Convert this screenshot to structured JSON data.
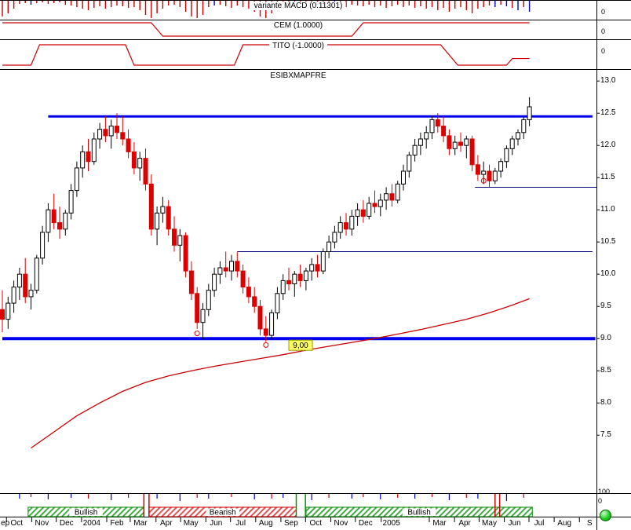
{
  "panels": {
    "macd": {
      "title": "variante MACD (0.11301)",
      "zero_label": "0"
    },
    "cem": {
      "title": "CEM (1.0000)",
      "zero_label": "0"
    },
    "tito": {
      "title": "TITO (-1.0000)",
      "zero_label": "0"
    },
    "main": {
      "title": "ESIBXMAPFRE"
    },
    "signal": {
      "scale_top_label": "100",
      "scale_bottom_label": "0"
    }
  },
  "status_indicator": {
    "color": "#22cc22"
  },
  "chart_data": {
    "type": "candlestick",
    "symbol": "ESIBXMAPFRE",
    "indicators": {
      "macd_value": 0.11301,
      "cem_value": 1.0,
      "tito_value": -1.0
    },
    "style": {
      "up_color": "#ffffff",
      "down_color": "#dd0000",
      "ma_color": "#cc0000",
      "support_color": "#0000ee",
      "minor_line_color": "#000080"
    },
    "y_axis": {
      "min": 6.6,
      "max": 13.1,
      "ticks": [
        "13.0",
        "12.5",
        "12.0",
        "11.5",
        "11.0",
        "10.5",
        "10.0",
        "9.5",
        "9.0",
        "8.5",
        "8.0",
        "7.5"
      ]
    },
    "x_axis": {
      "labels": [
        {
          "label": "ep",
          "week": 0.5
        },
        {
          "label": "Oct",
          "week": 2.5
        },
        {
          "label": "Nov",
          "week": 6.9
        },
        {
          "label": "Dec",
          "week": 11.2
        },
        {
          "label": "2004",
          "week": 15.6
        },
        {
          "label": "Feb",
          "week": 20
        },
        {
          "label": "Mar",
          "week": 24.1
        },
        {
          "label": "Apr",
          "week": 28.6
        },
        {
          "label": "May",
          "week": 32.9
        },
        {
          "label": "Jun",
          "week": 37.3
        },
        {
          "label": "Jul",
          "week": 41.6
        },
        {
          "label": "Aug",
          "week": 46
        },
        {
          "label": "Sep",
          "week": 50.4
        },
        {
          "label": "Oct",
          "week": 54.7
        },
        {
          "label": "Nov",
          "week": 59.1
        },
        {
          "label": "Dec",
          "week": 63.4
        },
        {
          "label": "2005",
          "week": 67.9
        },
        {
          "label": "Mar",
          "week": 76.3
        },
        {
          "label": "Apr",
          "week": 80.7
        },
        {
          "label": "May",
          "week": 85
        },
        {
          "label": "Jun",
          "week": 89.4
        },
        {
          "label": "Jul",
          "week": 93.7
        },
        {
          "label": "Aug",
          "week": 98.1
        },
        {
          "label": "S",
          "week": 102.5
        }
      ]
    },
    "candles": [
      [
        9.45,
        9.75,
        9.1,
        9.3
      ],
      [
        9.3,
        9.65,
        9.15,
        9.55
      ],
      [
        9.55,
        9.9,
        9.4,
        9.8
      ],
      [
        9.8,
        10.1,
        9.6,
        10.0
      ],
      [
        10.0,
        10.25,
        9.55,
        9.65
      ],
      [
        9.65,
        9.85,
        9.45,
        9.75
      ],
      [
        9.75,
        10.3,
        9.7,
        10.25
      ],
      [
        10.25,
        10.75,
        10.15,
        10.65
      ],
      [
        10.65,
        11.1,
        10.5,
        11.0
      ],
      [
        11.0,
        11.25,
        10.7,
        10.8
      ],
      [
        10.8,
        11.05,
        10.55,
        10.7
      ],
      [
        10.7,
        11.0,
        10.6,
        10.95
      ],
      [
        10.95,
        11.4,
        10.85,
        11.3
      ],
      [
        11.3,
        11.75,
        11.2,
        11.65
      ],
      [
        11.65,
        12.0,
        11.5,
        11.9
      ],
      [
        11.9,
        12.1,
        11.6,
        11.75
      ],
      [
        11.75,
        12.2,
        11.7,
        12.1
      ],
      [
        12.1,
        12.35,
        11.95,
        12.25
      ],
      [
        12.25,
        12.45,
        12.05,
        12.15
      ],
      [
        12.15,
        12.4,
        11.95,
        12.3
      ],
      [
        12.3,
        12.5,
        12.1,
        12.2
      ],
      [
        12.2,
        12.45,
        12.0,
        12.1
      ],
      [
        12.1,
        12.25,
        11.8,
        11.9
      ],
      [
        11.9,
        12.05,
        11.55,
        11.65
      ],
      [
        11.65,
        11.9,
        11.45,
        11.8
      ],
      [
        11.8,
        11.95,
        11.3,
        11.4
      ],
      [
        11.4,
        11.55,
        10.6,
        10.7
      ],
      [
        10.7,
        11.05,
        10.45,
        10.95
      ],
      [
        10.95,
        11.2,
        10.8,
        11.05
      ],
      [
        11.05,
        11.15,
        10.6,
        10.7
      ],
      [
        10.7,
        10.9,
        10.35,
        10.45
      ],
      [
        10.45,
        10.7,
        10.2,
        10.6
      ],
      [
        10.6,
        10.65,
        9.95,
        10.05
      ],
      [
        10.05,
        10.2,
        9.6,
        9.7
      ],
      [
        9.7,
        9.8,
        9.15,
        9.25
      ],
      [
        9.25,
        9.55,
        9.0,
        9.45
      ],
      [
        9.45,
        9.85,
        9.35,
        9.75
      ],
      [
        9.75,
        10.1,
        9.65,
        10.0
      ],
      [
        10.0,
        10.2,
        9.85,
        10.1
      ],
      [
        10.1,
        10.35,
        9.95,
        10.05
      ],
      [
        10.05,
        10.3,
        9.9,
        10.2
      ],
      [
        10.2,
        10.35,
        9.95,
        10.05
      ],
      [
        10.05,
        10.15,
        9.7,
        9.8
      ],
      [
        9.8,
        9.95,
        9.55,
        9.65
      ],
      [
        9.65,
        9.8,
        9.4,
        9.5
      ],
      [
        9.5,
        9.6,
        9.05,
        9.15
      ],
      [
        9.15,
        9.35,
        8.95,
        9.05
      ],
      [
        9.05,
        9.45,
        9.0,
        9.4
      ],
      [
        9.4,
        9.8,
        9.3,
        9.7
      ],
      [
        9.7,
        10.0,
        9.6,
        9.9
      ],
      [
        9.9,
        10.1,
        9.75,
        9.85
      ],
      [
        9.85,
        10.05,
        9.65,
        10.0
      ],
      [
        10.0,
        10.15,
        9.8,
        9.9
      ],
      [
        9.9,
        10.1,
        9.75,
        10.05
      ],
      [
        10.05,
        10.25,
        9.9,
        10.15
      ],
      [
        10.15,
        10.3,
        9.95,
        10.05
      ],
      [
        10.05,
        10.4,
        10.0,
        10.35
      ],
      [
        10.35,
        10.6,
        10.25,
        10.5
      ],
      [
        10.5,
        10.75,
        10.4,
        10.65
      ],
      [
        10.65,
        10.9,
        10.55,
        10.8
      ],
      [
        10.8,
        10.95,
        10.6,
        10.7
      ],
      [
        10.7,
        11.0,
        10.6,
        10.9
      ],
      [
        10.9,
        11.1,
        10.75,
        11.0
      ],
      [
        11.0,
        11.15,
        10.8,
        10.9
      ],
      [
        10.9,
        11.2,
        10.85,
        11.1
      ],
      [
        11.1,
        11.3,
        10.95,
        11.05
      ],
      [
        11.05,
        11.25,
        10.9,
        11.15
      ],
      [
        11.15,
        11.35,
        11.0,
        11.25
      ],
      [
        11.25,
        11.4,
        11.05,
        11.15
      ],
      [
        11.15,
        11.45,
        11.1,
        11.4
      ],
      [
        11.4,
        11.7,
        11.3,
        11.6
      ],
      [
        11.6,
        11.9,
        11.5,
        11.85
      ],
      [
        11.85,
        12.1,
        11.75,
        12.0
      ],
      [
        12.0,
        12.2,
        11.85,
        12.1
      ],
      [
        12.1,
        12.3,
        11.95,
        12.2
      ],
      [
        12.2,
        12.45,
        12.1,
        12.4
      ],
      [
        12.4,
        12.5,
        12.2,
        12.3
      ],
      [
        12.3,
        12.45,
        12.05,
        12.15
      ],
      [
        12.15,
        12.25,
        11.85,
        11.95
      ],
      [
        11.95,
        12.15,
        11.85,
        12.05
      ],
      [
        12.05,
        12.2,
        11.9,
        12.0
      ],
      [
        12.0,
        12.15,
        11.8,
        12.1
      ],
      [
        12.1,
        12.15,
        11.6,
        11.7
      ],
      [
        11.7,
        11.85,
        11.45,
        11.55
      ],
      [
        11.55,
        11.75,
        11.4,
        11.6
      ],
      [
        11.6,
        11.7,
        11.35,
        11.45
      ],
      [
        11.45,
        11.65,
        11.4,
        11.6
      ],
      [
        11.6,
        11.8,
        11.5,
        11.75
      ],
      [
        11.75,
        12.0,
        11.65,
        11.95
      ],
      [
        11.95,
        12.15,
        11.85,
        12.1
      ],
      [
        12.1,
        12.25,
        12.0,
        12.2
      ],
      [
        12.2,
        12.45,
        12.1,
        12.4
      ],
      [
        12.4,
        12.75,
        12.3,
        12.6
      ]
    ],
    "ma_line": [
      [
        5,
        7.3
      ],
      [
        9,
        7.55
      ],
      [
        13,
        7.8
      ],
      [
        17,
        8.0
      ],
      [
        21,
        8.18
      ],
      [
        25,
        8.32
      ],
      [
        29,
        8.42
      ],
      [
        33,
        8.5
      ],
      [
        37,
        8.57
      ],
      [
        41,
        8.63
      ],
      [
        45,
        8.69
      ],
      [
        49,
        8.75
      ],
      [
        53,
        8.82
      ],
      [
        57,
        8.88
      ],
      [
        61,
        8.94
      ],
      [
        65,
        9.0
      ],
      [
        69,
        9.07
      ],
      [
        73,
        9.14
      ],
      [
        77,
        9.22
      ],
      [
        81,
        9.3
      ],
      [
        85,
        9.4
      ],
      [
        89,
        9.52
      ],
      [
        92,
        9.62
      ]
    ],
    "hlines": [
      {
        "name": "resistance-line",
        "price": 12.45,
        "from_week": 8,
        "to_week": 103,
        "color": "#0000ee",
        "width": 3
      },
      {
        "name": "support-line",
        "price": 9.0,
        "from_week": 0,
        "to_week": 103.5,
        "color": "#0000ee",
        "width": 4
      },
      {
        "name": "minor-level-line-1",
        "price": 10.35,
        "from_week": 41,
        "to_week": 103,
        "color": "#000080",
        "width": 1
      },
      {
        "name": "minor-level-line-2",
        "price": 11.35,
        "from_week": 82.5,
        "to_week": 103.7,
        "color": "#000080",
        "width": 1
      }
    ],
    "markers": [
      {
        "week": 34,
        "price": 9.08
      },
      {
        "week": 46,
        "price": 8.9
      },
      {
        "week": 84,
        "price": 11.45
      }
    ],
    "price_flag": {
      "text": "9,00",
      "week": 50,
      "price": 9.0
    },
    "macd_hist": [
      [
        20,
        "r"
      ],
      [
        16,
        "r"
      ],
      [
        10,
        "r"
      ],
      [
        4,
        "r"
      ],
      [
        3,
        "r"
      ],
      [
        5,
        "b"
      ],
      [
        3,
        "r"
      ],
      [
        2,
        "r"
      ],
      [
        4,
        "r"
      ],
      [
        3,
        "r"
      ],
      [
        2,
        "r"
      ],
      [
        5,
        "r"
      ],
      [
        6,
        "r"
      ],
      [
        8,
        "r"
      ],
      [
        10,
        "r"
      ],
      [
        12,
        "r"
      ],
      [
        9,
        "r"
      ],
      [
        7,
        "r"
      ],
      [
        10,
        "r"
      ],
      [
        8,
        "r"
      ],
      [
        6,
        "r"
      ],
      [
        7,
        "r"
      ],
      [
        9,
        "r"
      ],
      [
        8,
        "r"
      ],
      [
        12,
        "r"
      ],
      [
        18,
        "r"
      ],
      [
        22,
        "r"
      ],
      [
        16,
        "r"
      ],
      [
        10,
        "r"
      ],
      [
        6,
        "r"
      ],
      [
        5,
        "r"
      ],
      [
        8,
        "r"
      ],
      [
        14,
        "r"
      ],
      [
        20,
        "r"
      ],
      [
        22,
        "r"
      ],
      [
        18,
        "r"
      ],
      [
        8,
        "r"
      ],
      [
        6,
        "b"
      ],
      [
        5,
        "r"
      ],
      [
        7,
        "r"
      ],
      [
        9,
        "r"
      ],
      [
        6,
        "r"
      ],
      [
        8,
        "r"
      ],
      [
        10,
        "r"
      ],
      [
        14,
        "r"
      ],
      [
        20,
        "r"
      ],
      [
        22,
        "r"
      ],
      [
        16,
        "r"
      ],
      [
        10,
        "r"
      ],
      [
        6,
        "r"
      ],
      [
        5,
        "r"
      ],
      [
        7,
        "r"
      ],
      [
        4,
        "r"
      ],
      [
        6,
        "r"
      ],
      [
        5,
        "r"
      ],
      [
        7,
        "r"
      ],
      [
        5,
        "r"
      ],
      [
        7,
        "r"
      ],
      [
        9,
        "b"
      ],
      [
        6,
        "r"
      ],
      [
        8,
        "r"
      ],
      [
        5,
        "r"
      ],
      [
        6,
        "r"
      ],
      [
        7,
        "r"
      ],
      [
        5,
        "r"
      ],
      [
        8,
        "r"
      ],
      [
        6,
        "r"
      ],
      [
        9,
        "r"
      ],
      [
        7,
        "r"
      ],
      [
        5,
        "r"
      ],
      [
        8,
        "r"
      ],
      [
        6,
        "r"
      ],
      [
        9,
        "r"
      ],
      [
        7,
        "r"
      ],
      [
        10,
        "r"
      ],
      [
        8,
        "r"
      ],
      [
        12,
        "r"
      ],
      [
        9,
        "r"
      ],
      [
        14,
        "r"
      ],
      [
        10,
        "r"
      ],
      [
        8,
        "r"
      ],
      [
        12,
        "r"
      ],
      [
        16,
        "r"
      ],
      [
        10,
        "r"
      ],
      [
        8,
        "r"
      ],
      [
        6,
        "r"
      ],
      [
        8,
        "b"
      ],
      [
        5,
        "r"
      ],
      [
        7,
        "b"
      ],
      [
        9,
        "r"
      ],
      [
        12,
        "b"
      ],
      [
        8,
        "r"
      ],
      [
        14,
        "b"
      ]
    ],
    "cem_steps": [
      [
        0,
        1
      ],
      [
        26,
        1
      ],
      [
        28,
        -1
      ],
      [
        61,
        -1
      ],
      [
        63,
        1
      ],
      [
        92,
        1
      ]
    ],
    "tito_steps": [
      [
        0,
        -1
      ],
      [
        5,
        -1
      ],
      [
        6.5,
        1
      ],
      [
        21.5,
        1
      ],
      [
        23,
        -1
      ],
      [
        40.5,
        -1
      ],
      [
        42,
        1
      ],
      [
        76.5,
        1
      ],
      [
        79.5,
        -1
      ],
      [
        88,
        -1
      ],
      [
        89,
        -0.35
      ],
      [
        92,
        -0.35
      ]
    ],
    "signal_bands": [
      {
        "label": "Bullish",
        "from_week": 4.5,
        "to_week": 24.7,
        "kind": "bullish"
      },
      {
        "label": "Bearish",
        "from_week": 25.6,
        "to_week": 51.3,
        "kind": "bearish"
      },
      {
        "label": "Bullish",
        "from_week": 53,
        "to_week": 92.5,
        "kind": "bullish"
      }
    ],
    "signal_ticks": [
      [
        3,
        "b",
        6
      ],
      [
        5,
        "r",
        4
      ],
      [
        8,
        "b",
        7
      ],
      [
        12,
        "b",
        5
      ],
      [
        15,
        "r",
        6
      ],
      [
        19,
        "b",
        8
      ],
      [
        22,
        "r",
        5
      ],
      [
        27,
        "b",
        6
      ],
      [
        31,
        "b",
        9
      ],
      [
        34,
        "r",
        5
      ],
      [
        36,
        "b",
        6
      ],
      [
        40,
        "r",
        4
      ],
      [
        44,
        "b",
        7
      ],
      [
        47,
        "r",
        6
      ],
      [
        49,
        "b",
        5
      ],
      [
        54,
        "b",
        8
      ],
      [
        57,
        "r",
        5
      ],
      [
        61,
        "b",
        6
      ],
      [
        63,
        "r",
        4
      ],
      [
        66,
        "b",
        7
      ],
      [
        69,
        "r",
        5
      ],
      [
        72,
        "b",
        6
      ],
      [
        75,
        "r",
        4
      ],
      [
        78,
        "b",
        8
      ],
      [
        81,
        "r",
        5
      ],
      [
        83,
        "b",
        6
      ],
      [
        88,
        "b",
        9
      ],
      [
        91,
        "r",
        5
      ]
    ],
    "signal_tall": [
      [
        24.7,
        "r"
      ],
      [
        25.6,
        "r"
      ],
      [
        51.3,
        "g"
      ],
      [
        52.9,
        "g"
      ],
      [
        86,
        "r"
      ],
      [
        86.8,
        "r"
      ]
    ]
  }
}
